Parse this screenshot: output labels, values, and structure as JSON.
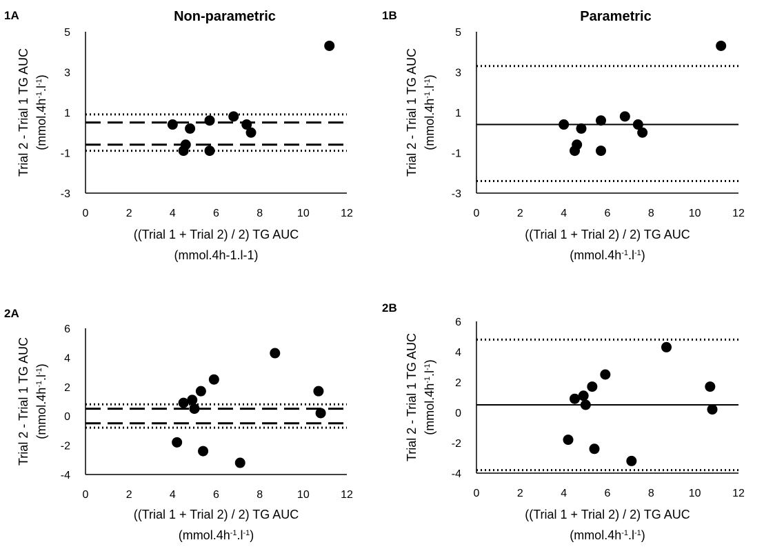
{
  "chart_data": [
    {
      "panel": "1A",
      "type": "scatter",
      "title": "Non-parametric",
      "xlabel": "((Trial 1 + Trial 2) / 2) TG AUC",
      "xlabel_unit_parts": [
        "(mmol.4h-1.l-1)"
      ],
      "ylabel": "Trial 2 - Trial 1 TG AUC",
      "ylabel_unit_parts": [
        "(mmol.4h",
        "-1",
        ".l",
        "-1",
        ")"
      ],
      "xlim": [
        0,
        12
      ],
      "ylim": [
        -3,
        5
      ],
      "xticks": [
        0,
        2,
        4,
        6,
        8,
        10,
        12
      ],
      "yticks": [
        -3,
        -1,
        1,
        3,
        5
      ],
      "points": [
        [
          4.0,
          0.4
        ],
        [
          4.5,
          -0.9
        ],
        [
          4.6,
          -0.6
        ],
        [
          4.8,
          0.2
        ],
        [
          5.7,
          0.6
        ],
        [
          5.7,
          -0.9
        ],
        [
          6.8,
          0.8
        ],
        [
          7.4,
          0.4
        ],
        [
          7.6,
          0.0
        ],
        [
          11.2,
          4.3
        ]
      ],
      "reference_lines": [
        {
          "y": 0.9,
          "style": "dotted"
        },
        {
          "y": 0.5,
          "style": "dashed"
        },
        {
          "y": -0.6,
          "style": "dashed"
        },
        {
          "y": -0.9,
          "style": "dotted"
        }
      ]
    },
    {
      "panel": "1B",
      "type": "scatter",
      "title": "Parametric",
      "xlabel": "((Trial 1 + Trial 2) / 2) TG AUC",
      "xlabel_unit_parts": [
        "(mmol.4h",
        "-1",
        ".l",
        "-1",
        ")"
      ],
      "ylabel": "Trial 2 - Trial 1 TG AUC",
      "ylabel_unit_parts": [
        "(mmol.4h",
        "-1",
        ".l",
        "-1",
        ")"
      ],
      "xlim": [
        0,
        12
      ],
      "ylim": [
        -3,
        5
      ],
      "xticks": [
        0,
        2,
        4,
        6,
        8,
        10,
        12
      ],
      "yticks": [
        -3,
        -1,
        1,
        3,
        5
      ],
      "points": [
        [
          4.0,
          0.4
        ],
        [
          4.5,
          -0.9
        ],
        [
          4.6,
          -0.6
        ],
        [
          4.8,
          0.2
        ],
        [
          5.7,
          0.6
        ],
        [
          5.7,
          -0.9
        ],
        [
          6.8,
          0.8
        ],
        [
          7.4,
          0.4
        ],
        [
          7.6,
          0.0
        ],
        [
          11.2,
          4.3
        ]
      ],
      "reference_lines": [
        {
          "y": 3.3,
          "style": "dotted"
        },
        {
          "y": 0.4,
          "style": "solid"
        },
        {
          "y": -2.4,
          "style": "dotted"
        }
      ]
    },
    {
      "panel": "2A",
      "type": "scatter",
      "title": "",
      "xlabel": "((Trial 1 + Trial 2) / 2) TG AUC",
      "xlabel_unit_parts": [
        "(mmol.4h",
        "-1",
        ".l",
        "-1",
        ")"
      ],
      "ylabel": "Trial 2 - Trial 1 TG AUC",
      "ylabel_unit_parts": [
        "(mmol.4h",
        "-1",
        ".l",
        "-1",
        ")"
      ],
      "xlim": [
        0,
        12
      ],
      "ylim": [
        -4,
        6
      ],
      "xticks": [
        0,
        2,
        4,
        6,
        8,
        10,
        12
      ],
      "yticks": [
        -4,
        -2,
        0,
        2,
        4,
        6
      ],
      "points": [
        [
          4.2,
          -1.8
        ],
        [
          4.5,
          0.9
        ],
        [
          4.9,
          1.1
        ],
        [
          5.0,
          0.5
        ],
        [
          5.3,
          1.7
        ],
        [
          5.4,
          -2.4
        ],
        [
          5.9,
          2.5
        ],
        [
          7.1,
          -3.2
        ],
        [
          8.7,
          4.3
        ],
        [
          10.7,
          1.7
        ],
        [
          10.8,
          0.2
        ]
      ],
      "reference_lines": [
        {
          "y": 0.8,
          "style": "dotted"
        },
        {
          "y": 0.5,
          "style": "dashed"
        },
        {
          "y": -0.5,
          "style": "dashed"
        },
        {
          "y": -0.8,
          "style": "dotted"
        }
      ]
    },
    {
      "panel": "2B",
      "type": "scatter",
      "title": "",
      "xlabel": "((Trial 1 + Trial 2) / 2) TG AUC",
      "xlabel_unit_parts": [
        "(mmol.4h",
        "-1",
        ".l",
        "-1",
        ")"
      ],
      "ylabel": "Trial 2 - Trial 1 TG AUC",
      "ylabel_unit_parts": [
        "(mmol.4h",
        "-1",
        ".l",
        "-1",
        ")"
      ],
      "xlim": [
        0,
        12
      ],
      "ylim": [
        -4,
        6
      ],
      "xticks": [
        0,
        2,
        4,
        6,
        8,
        10,
        12
      ],
      "yticks": [
        -4,
        -2,
        0,
        2,
        4,
        6
      ],
      "points": [
        [
          4.2,
          -1.8
        ],
        [
          4.5,
          0.9
        ],
        [
          4.9,
          1.1
        ],
        [
          5.0,
          0.5
        ],
        [
          5.3,
          1.7
        ],
        [
          5.4,
          -2.4
        ],
        [
          5.9,
          2.5
        ],
        [
          7.1,
          -3.2
        ],
        [
          8.7,
          4.3
        ],
        [
          10.7,
          1.7
        ],
        [
          10.8,
          0.2
        ]
      ],
      "reference_lines": [
        {
          "y": 4.8,
          "style": "dotted"
        },
        {
          "y": 0.5,
          "style": "solid"
        },
        {
          "y": -3.8,
          "style": "dotted"
        }
      ]
    }
  ]
}
